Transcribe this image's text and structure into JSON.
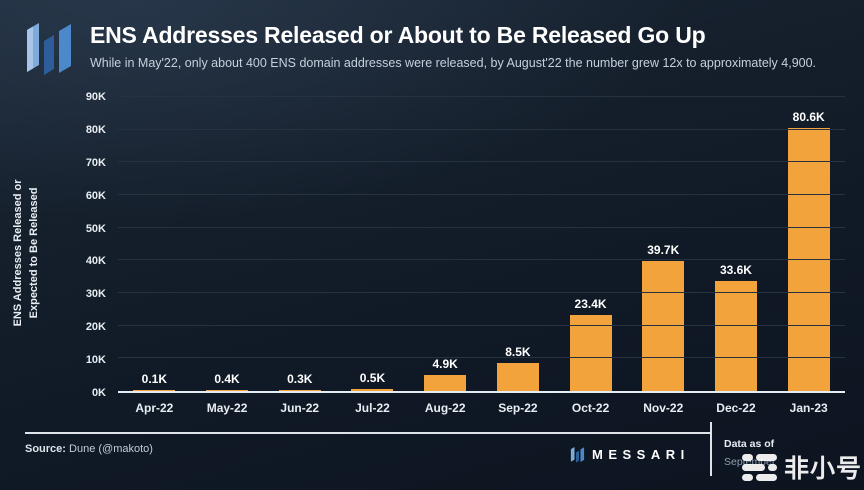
{
  "header": {
    "title": "ENS Addresses Released or About to Be Released Go Up",
    "subtitle": "While in May'22, only about 400 ENS domain addresses were released, by August'22 the number grew 12x to approximately 4,900."
  },
  "chart_data": {
    "type": "bar",
    "title": "ENS Addresses Released or About to Be Released Go Up",
    "categories": [
      "Apr-22",
      "May-22",
      "Jun-22",
      "Jul-22",
      "Aug-22",
      "Sep-22",
      "Oct-22",
      "Nov-22",
      "Dec-22",
      "Jan-23"
    ],
    "values": [
      0.1,
      0.4,
      0.3,
      0.5,
      4.9,
      8.5,
      23.4,
      39.7,
      33.6,
      80.6
    ],
    "value_labels": [
      "0.1K",
      "0.4K",
      "0.3K",
      "0.5K",
      "4.9K",
      "8.5K",
      "23.4K",
      "39.7K",
      "33.6K",
      "80.6K"
    ],
    "unit": "K",
    "ylabel_lines": [
      "ENS Addresses Released or",
      "Expected to Be Released"
    ],
    "yticks": [
      "0K",
      "10K",
      "20K",
      "30K",
      "40K",
      "50K",
      "60K",
      "70K",
      "80K",
      "90K"
    ],
    "ylim": [
      0,
      90
    ],
    "grid": true,
    "legend": false,
    "bar_color": "#F2A33C"
  },
  "footer": {
    "source_label": "Source:",
    "source_value": " Dune (@makoto)",
    "brand": "MESSARI",
    "data_as_of_label": "Data as of",
    "data_as_of_value": "September"
  },
  "watermark": {
    "text": "非小号"
  },
  "colors": {
    "bar": "#F2A33C",
    "background_top": "#1D2A39",
    "background_bottom": "#0C1420",
    "gridline": "#273240",
    "baseline": "#E6EBF1",
    "logo_left": "#7FAADC",
    "logo_middle": "#2E5E99",
    "logo_right": "#4C89CB"
  }
}
